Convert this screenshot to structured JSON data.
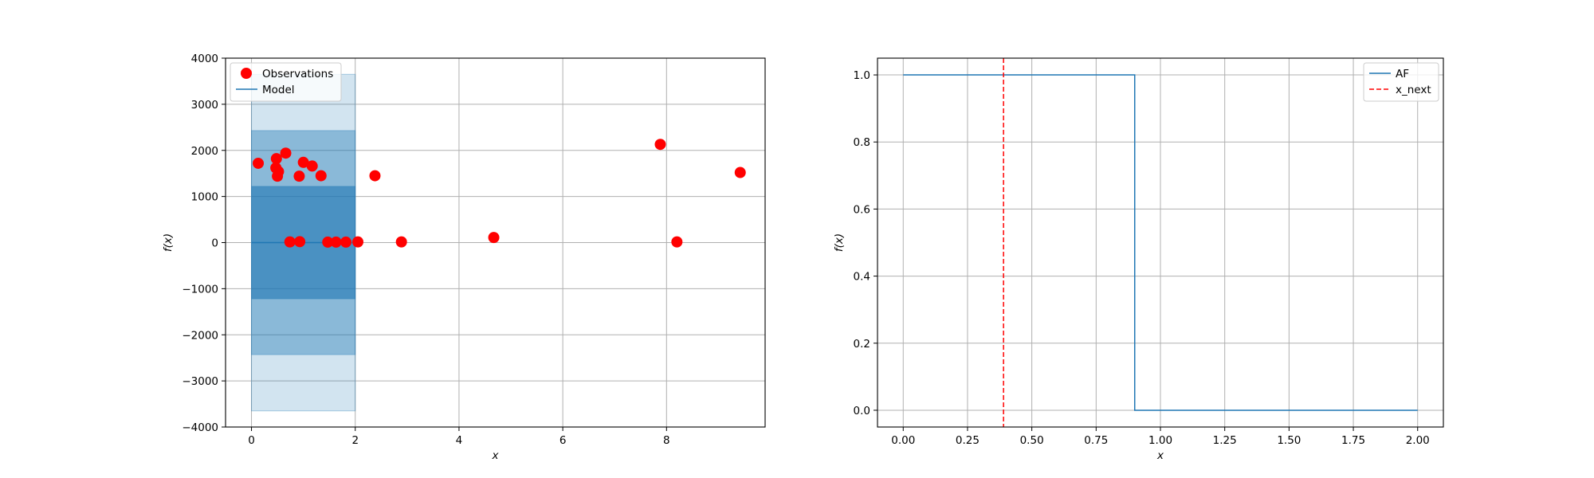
{
  "chart_data": [
    {
      "type": "scatter",
      "xlabel": "x",
      "ylabel": "f(x)",
      "xlim": [
        -0.5,
        9.9
      ],
      "ylim": [
        -4000,
        4000
      ],
      "xticks": [
        "0",
        "2",
        "4",
        "6",
        "8"
      ],
      "yticks": [
        "−4000",
        "−3000",
        "−2000",
        "−1000",
        "0",
        "1000",
        "2000",
        "3000",
        "4000"
      ],
      "grid": true,
      "legend": {
        "placement": "top-left",
        "entries": [
          "Observations",
          "Model"
        ]
      },
      "colors": {
        "observations": "#ff0000",
        "model": "#1f77b4"
      },
      "series": [
        {
          "name": "Observations",
          "points": [
            [
              0.13,
              1720
            ],
            [
              0.48,
              1820
            ],
            [
              0.47,
              1620
            ],
            [
              0.52,
              1540
            ],
            [
              0.5,
              1440
            ],
            [
              0.66,
              1940
            ],
            [
              1.0,
              1740
            ],
            [
              1.17,
              1660
            ],
            [
              0.92,
              1440
            ],
            [
              1.34,
              1450
            ],
            [
              0.74,
              15
            ],
            [
              0.93,
              20
            ],
            [
              1.47,
              10
            ],
            [
              1.63,
              10
            ],
            [
              1.82,
              10
            ],
            [
              2.05,
              15
            ],
            [
              2.38,
              1450
            ],
            [
              2.89,
              15
            ],
            [
              4.67,
              110
            ],
            [
              7.88,
              2130
            ],
            [
              8.2,
              15
            ],
            [
              9.42,
              1520
            ]
          ]
        },
        {
          "name": "Model",
          "x_range": [
            0,
            2
          ],
          "mean": 0,
          "bands": [
            {
              "lower": -3650,
              "upper": 3650,
              "opacity": 0.2
            },
            {
              "lower": -2430,
              "upper": 2430,
              "opacity": 0.4
            },
            {
              "lower": -1220,
              "upper": 1220,
              "opacity": 0.6
            }
          ]
        }
      ]
    },
    {
      "type": "line",
      "xlabel": "x",
      "ylabel": "f(x)",
      "xlim": [
        -0.1,
        2.1
      ],
      "ylim": [
        -0.05,
        1.05
      ],
      "xticks": [
        "0.00",
        "0.25",
        "0.50",
        "0.75",
        "1.00",
        "1.25",
        "1.50",
        "1.75",
        "2.00"
      ],
      "yticks": [
        "0.0",
        "0.2",
        "0.4",
        "0.6",
        "0.8",
        "1.0"
      ],
      "grid": true,
      "legend": {
        "placement": "top-right",
        "entries": [
          "AF",
          "x_next"
        ]
      },
      "colors": {
        "af": "#1f77b4",
        "x_next": "#ff0000"
      },
      "series": [
        {
          "name": "AF",
          "step": {
            "x_start": 0,
            "x_step": 0.9,
            "x_end": 2.0,
            "before": 1.0,
            "after": 0.0
          }
        },
        {
          "name": "x_next",
          "x": 0.39
        }
      ]
    }
  ]
}
